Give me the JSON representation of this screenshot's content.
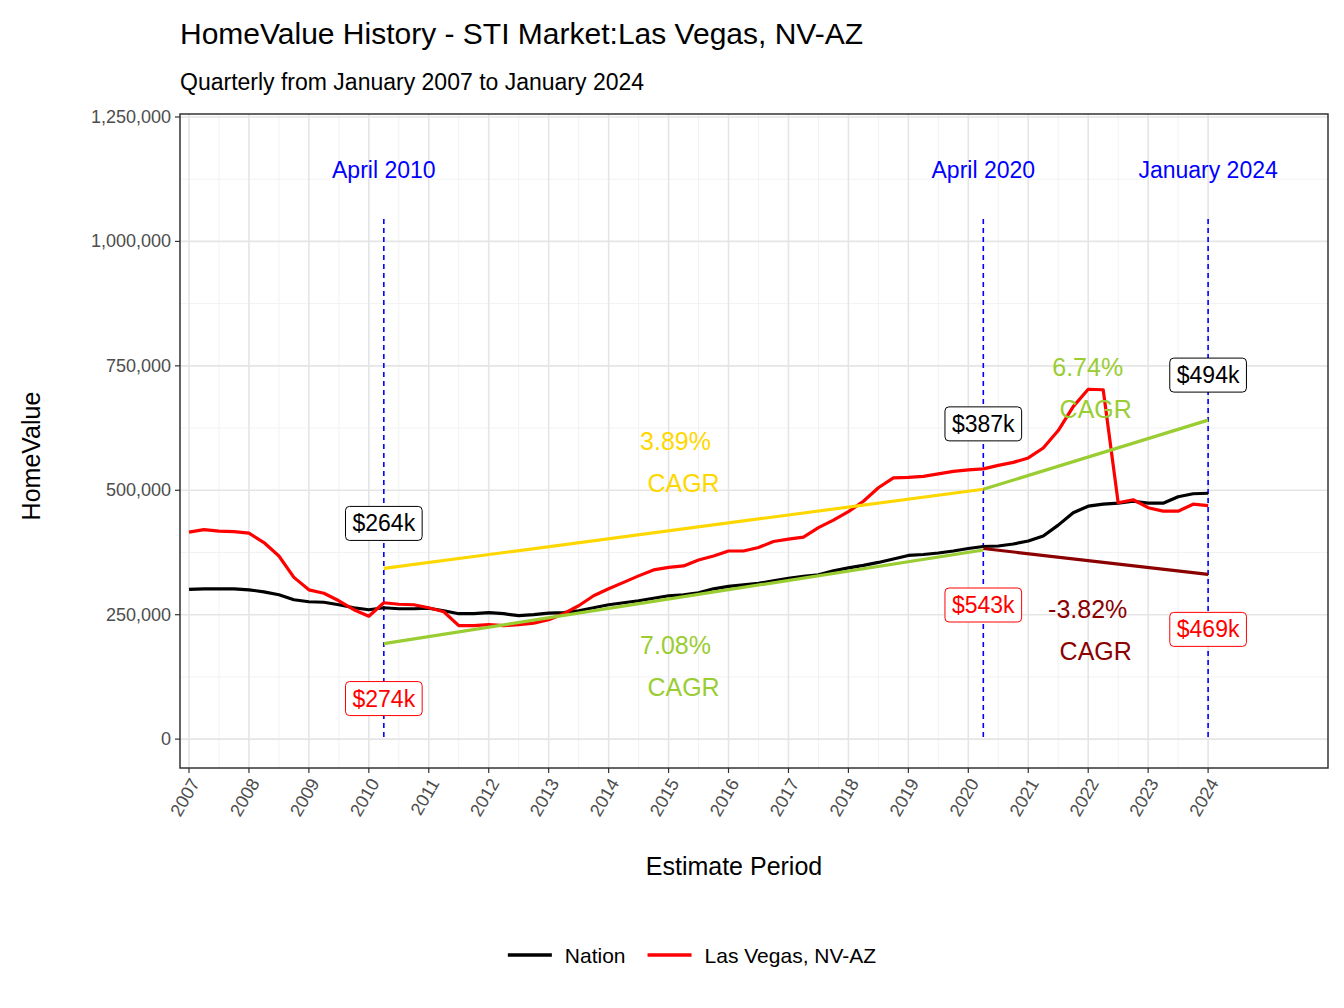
{
  "chart_data": {
    "type": "line",
    "title": "HomeValue History - STI Market:Las Vegas, NV-AZ",
    "subtitle": "Quarterly from January 2007 to January 2024",
    "x_label": "Estimate Period",
    "y_label": "HomeValue",
    "grid": true,
    "legend": "bottom",
    "xlim": [
      2006.85,
      2026.0
    ],
    "xticks": [
      2007,
      2008,
      2009,
      2010,
      2011,
      2012,
      2013,
      2014,
      2015,
      2016,
      2017,
      2018,
      2019,
      2020,
      2021,
      2022,
      2023,
      2024
    ],
    "ylim": [
      -58000,
      1256000
    ],
    "yticks": [
      0,
      {
        "value": 250000,
        "label": "250,000"
      },
      {
        "value": 500000,
        "label": "500,000"
      },
      {
        "value": 750000,
        "label": "750,000"
      },
      {
        "value": 1000000,
        "label": "1,000,000"
      },
      {
        "value": 1250000,
        "label": "1,250,000"
      }
    ],
    "x": [
      2007,
      2007.25,
      2007.5,
      2007.75,
      2008,
      2008.25,
      2008.5,
      2008.75,
      2009,
      2009.25,
      2009.5,
      2009.75,
      2010,
      2010.25,
      2010.5,
      2010.75,
      2011,
      2011.25,
      2011.5,
      2011.75,
      2012,
      2012.25,
      2012.5,
      2012.75,
      2013,
      2013.25,
      2013.5,
      2013.75,
      2014,
      2014.25,
      2014.5,
      2014.75,
      2015,
      2015.25,
      2015.5,
      2015.75,
      2016,
      2016.25,
      2016.5,
      2016.75,
      2017,
      2017.25,
      2017.5,
      2017.75,
      2018,
      2018.25,
      2018.5,
      2018.75,
      2019,
      2019.25,
      2019.5,
      2019.75,
      2020,
      2020.25,
      2020.5,
      2020.75,
      2021,
      2021.25,
      2021.5,
      2021.75,
      2022,
      2022.25,
      2022.5,
      2022.75,
      2023,
      2023.25,
      2023.5,
      2023.75,
      2024
    ],
    "series": [
      {
        "name": "Nation",
        "color": "#000000",
        "values": [
          301000,
          302000,
          302000,
          302000,
          300000,
          296000,
          290000,
          280000,
          276000,
          275000,
          270000,
          264000,
          260000,
          264000,
          262000,
          262000,
          263000,
          258000,
          252000,
          252000,
          254000,
          252000,
          248000,
          250000,
          253000,
          254000,
          258000,
          264000,
          270000,
          274000,
          278000,
          283000,
          288000,
          290000,
          294000,
          302000,
          307000,
          310000,
          313000,
          318000,
          323000,
          327000,
          330000,
          338000,
          344000,
          349000,
          355000,
          362000,
          369000,
          371000,
          374000,
          378000,
          383000,
          387000,
          388000,
          392000,
          398000,
          408000,
          430000,
          455000,
          468000,
          472000,
          474000,
          478000,
          474000,
          474000,
          487000,
          493000,
          494000
        ],
        "value_labels": [
          null,
          null,
          null,
          null,
          null,
          null,
          null,
          null,
          null,
          null,
          null,
          null,
          null,
          "$264k",
          null,
          null,
          null,
          null,
          null,
          null,
          null,
          null,
          null,
          null,
          null,
          null,
          null,
          null,
          null,
          null,
          null,
          null,
          null,
          null,
          null,
          null,
          null,
          null,
          null,
          null,
          null,
          null,
          null,
          null,
          null,
          null,
          null,
          null,
          null,
          null,
          null,
          null,
          null,
          "$387k",
          null,
          null,
          null,
          null,
          null,
          null,
          null,
          null,
          null,
          null,
          null,
          null,
          null,
          null,
          "$494k"
        ]
      },
      {
        "name": "Las Vegas, NV-AZ",
        "color": "#FF0000",
        "values": [
          416000,
          421000,
          418000,
          417000,
          414000,
          395000,
          368000,
          325000,
          300000,
          293000,
          278000,
          260000,
          247000,
          274000,
          271000,
          270000,
          264000,
          256000,
          228000,
          228000,
          230000,
          228000,
          230000,
          233000,
          240000,
          252000,
          268000,
          288000,
          302000,
          315000,
          328000,
          340000,
          345000,
          348000,
          360000,
          368000,
          378000,
          378000,
          385000,
          397000,
          402000,
          406000,
          425000,
          440000,
          457000,
          478000,
          505000,
          525000,
          526000,
          528000,
          533000,
          538000,
          541000,
          543000,
          550000,
          556000,
          565000,
          585000,
          620000,
          668000,
          703000,
          702000,
          475000,
          481000,
          465000,
          458000,
          458000,
          472000,
          469000
        ],
        "value_labels": [
          null,
          null,
          null,
          null,
          null,
          null,
          null,
          null,
          null,
          null,
          null,
          null,
          null,
          "$274k",
          null,
          null,
          null,
          null,
          null,
          null,
          null,
          null,
          null,
          null,
          null,
          null,
          null,
          null,
          null,
          null,
          null,
          null,
          null,
          null,
          null,
          null,
          null,
          null,
          null,
          null,
          null,
          null,
          null,
          null,
          null,
          null,
          null,
          null,
          null,
          null,
          null,
          null,
          null,
          "$543k",
          null,
          null,
          null,
          null,
          null,
          null,
          null,
          null,
          null,
          null,
          null,
          null,
          null,
          null,
          "$469k"
        ]
      }
    ],
    "markers": [
      {
        "x": 2010.25,
        "label": "April 2010",
        "color": "#0000FF"
      },
      {
        "x": 2020.25,
        "label": "April 2020",
        "color": "#0000FF"
      },
      {
        "x": 2024,
        "label": "January 2024",
        "color": "#0000FF"
      }
    ],
    "trend_lines": [
      {
        "x": [
          2010.25,
          2020.25
        ],
        "values": [
          343000,
          502000
        ],
        "color": "#FFD700",
        "label": [
          "3.89%",
          "CAGR"
        ]
      },
      {
        "x": [
          2010.25,
          2020.25
        ],
        "values": [
          192000,
          380000
        ],
        "color": "#9ACD32",
        "label": [
          "7.08%",
          "CAGR"
        ]
      },
      {
        "x": [
          2020.25,
          2024
        ],
        "values": [
          502000,
          641000
        ],
        "color": "#9ACD32",
        "label": [
          "6.74%",
          "CAGR"
        ]
      },
      {
        "x": [
          2020.25,
          2024
        ],
        "values": [
          383000,
          331000
        ],
        "color": "#8B0000",
        "label": [
          "-3.82%",
          "CAGR"
        ]
      }
    ]
  }
}
